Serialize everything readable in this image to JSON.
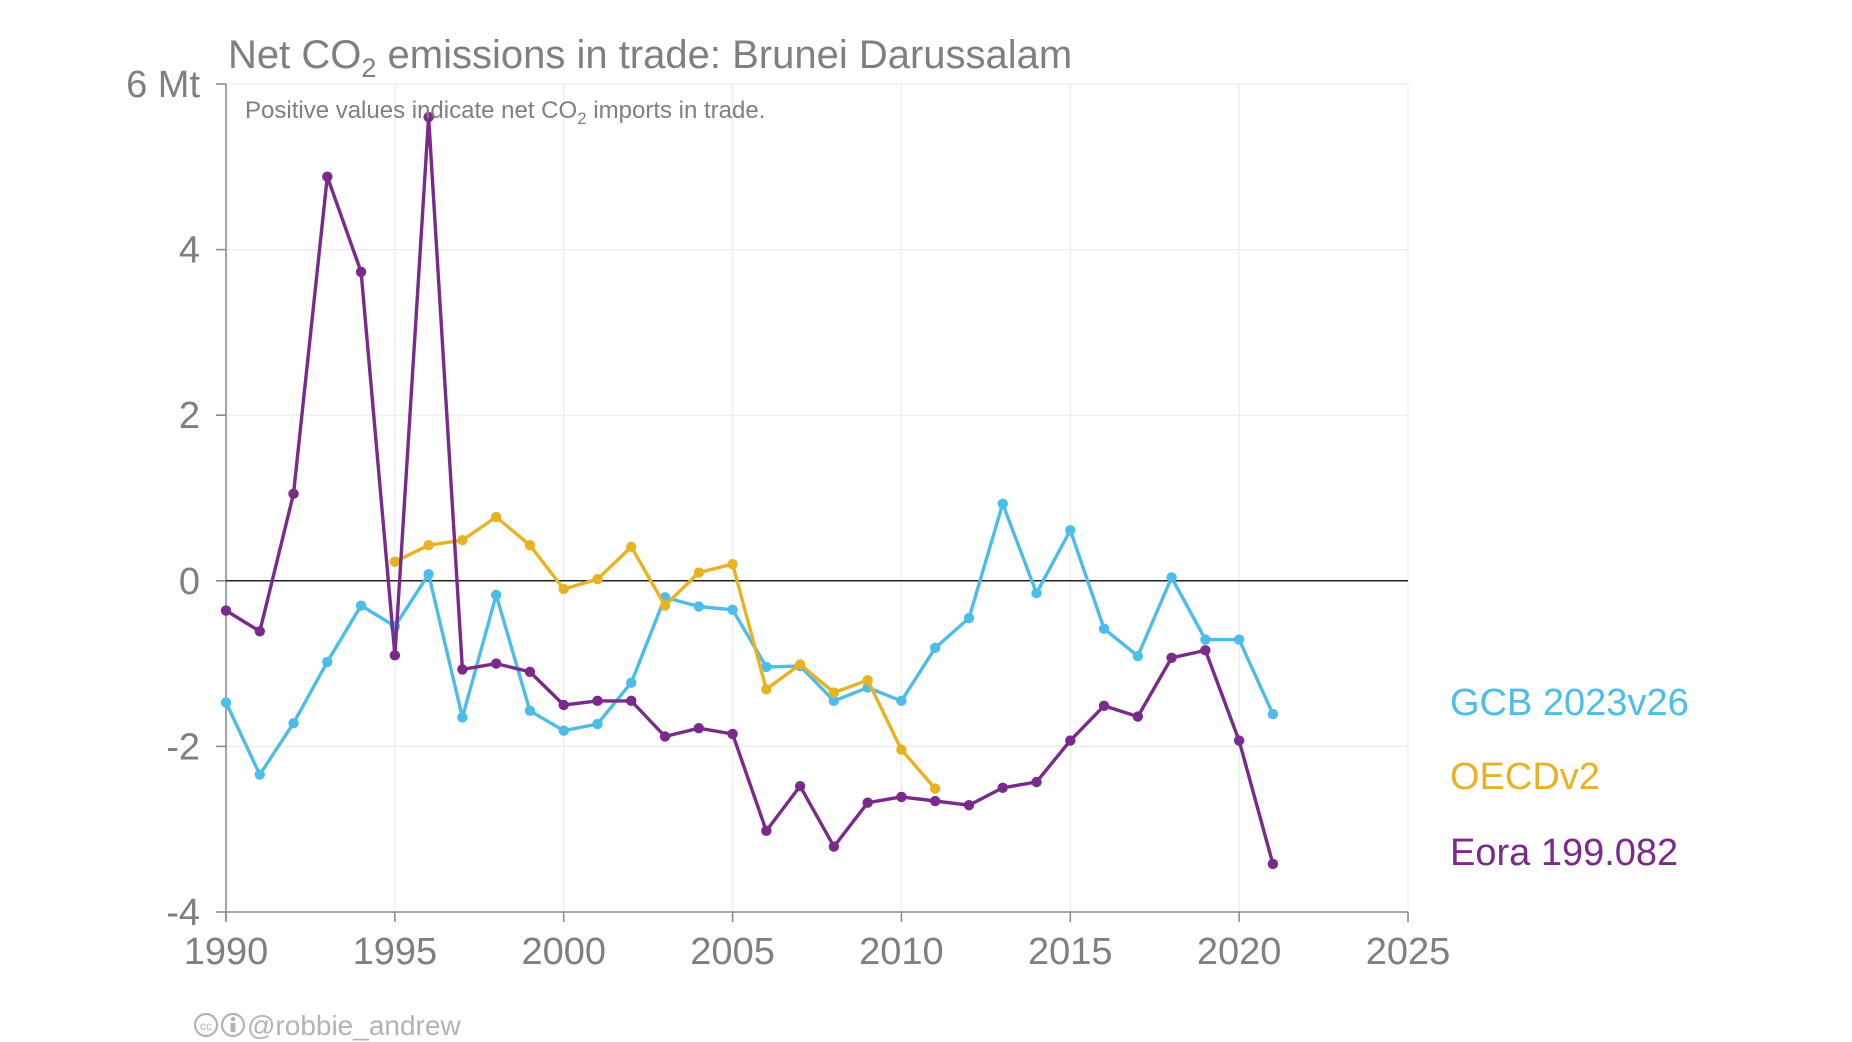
{
  "chart_data": {
    "type": "line",
    "title": "Net CO",
    "title_subscript": "2",
    "title_rest": " emissions in trade: Brunei Darussalam",
    "subtitle": "Positive values indicate net CO",
    "subtitle_subscript": "2",
    "subtitle_rest": " imports in trade.",
    "ylabel_unit": "Mt",
    "xlim": [
      1990,
      2025
    ],
    "ylim": [
      -4,
      6
    ],
    "x_ticks": [
      1990,
      1995,
      2000,
      2005,
      2010,
      2015,
      2020,
      2025
    ],
    "y_ticks": [
      -4,
      -2,
      0,
      2,
      4,
      6
    ],
    "y_tick_labels": [
      "-4",
      "-2",
      "0",
      "2",
      "4",
      "6 Mt"
    ],
    "grid": true,
    "legend_placement": "right",
    "series": [
      {
        "name": "GCB 2023v26",
        "color": "#4bbde8",
        "x": [
          1990,
          1991,
          1992,
          1993,
          1994,
          1995,
          1996,
          1997,
          1998,
          1999,
          2000,
          2001,
          2002,
          2003,
          2004,
          2005,
          2006,
          2007,
          2008,
          2009,
          2010,
          2011,
          2012,
          2013,
          2014,
          2015,
          2016,
          2017,
          2018,
          2019,
          2020,
          2021
        ],
        "y": [
          -1.47,
          -2.34,
          -1.72,
          -0.98,
          -0.3,
          -0.55,
          0.08,
          -1.65,
          -0.17,
          -1.57,
          -1.81,
          -1.73,
          -1.23,
          -0.2,
          -0.31,
          -0.35,
          -1.04,
          -1.03,
          -1.45,
          -1.29,
          -1.45,
          -0.81,
          -0.45,
          0.93,
          -0.15,
          0.61,
          -0.58,
          -0.91,
          0.04,
          -0.71,
          -0.71,
          -1.61
        ]
      },
      {
        "name": "OECDv2",
        "color": "#e8b223",
        "x": [
          1995,
          1996,
          1997,
          1998,
          1999,
          2000,
          2001,
          2002,
          2003,
          2004,
          2005,
          2006,
          2007,
          2008,
          2009,
          2010,
          2011
        ],
        "y": [
          0.23,
          0.43,
          0.49,
          0.77,
          0.43,
          -0.1,
          0.02,
          0.41,
          -0.3,
          0.1,
          0.2,
          -1.31,
          -1.01,
          -1.35,
          -1.2,
          -2.04,
          -2.51
        ]
      },
      {
        "name": "Eora 199.082",
        "color": "#7a2a8a",
        "x": [
          1990,
          1991,
          1992,
          1993,
          1994,
          1995,
          1996,
          1997,
          1998,
          1999,
          2000,
          2001,
          2002,
          2003,
          2004,
          2005,
          2006,
          2007,
          2008,
          2009,
          2010,
          2011,
          2012,
          2013,
          2014,
          2015,
          2016,
          2017,
          2018,
          2019,
          2020,
          2021
        ],
        "y": [
          -0.36,
          -0.61,
          1.05,
          4.88,
          3.73,
          -0.9,
          5.6,
          -1.07,
          -1.0,
          -1.1,
          -1.5,
          -1.45,
          -1.45,
          -1.88,
          -1.78,
          -1.85,
          -3.02,
          -2.48,
          -3.21,
          -2.68,
          -2.61,
          -2.66,
          -2.71,
          -2.5,
          -2.43,
          -1.93,
          -1.51,
          -1.64,
          -0.93,
          -0.84,
          -1.93,
          -3.42
        ]
      }
    ]
  },
  "credit": {
    "icons": [
      "cc-icon",
      "by-icon"
    ],
    "text": "@robbie_andrew"
  }
}
